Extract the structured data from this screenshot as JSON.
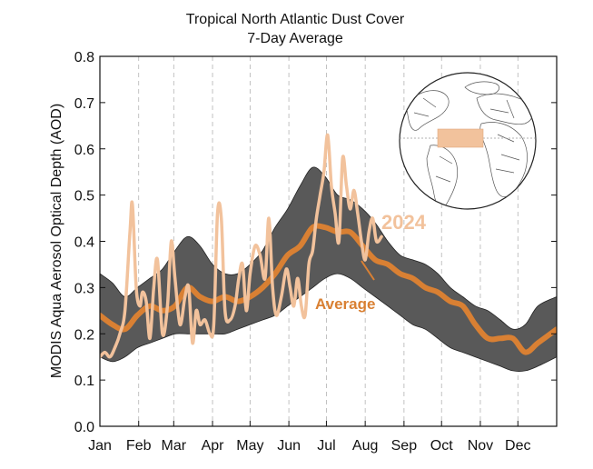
{
  "chart_data": {
    "type": "line",
    "title": "Tropical North Atlantic Dust Cover",
    "subtitle": "7-Day Average",
    "xlabel": "",
    "ylabel": "MODIS Aqua Aerosol Optical Depth (AOD)",
    "ylim": [
      0,
      0.8
    ],
    "yticks": [
      "0.0",
      "0.1",
      "0.2",
      "0.3",
      "0.4",
      "0.5",
      "0.6",
      "0.7",
      "0.8"
    ],
    "xlim": [
      0,
      365
    ],
    "months": [
      "Jan",
      "Feb",
      "Mar",
      "Apr",
      "May",
      "Jun",
      "Jul",
      "Aug",
      "Sep",
      "Oct",
      "Nov",
      "Dec"
    ],
    "month_start_days": [
      0,
      31,
      59,
      90,
      120,
      151,
      181,
      212,
      243,
      273,
      304,
      334
    ],
    "grid": "vertical dashed at month starts",
    "legend": "inline labels",
    "colors": {
      "band": "#595959",
      "average": "#d98033",
      "year": "#f2c29c",
      "grid": "#b3b3b3",
      "region": "#f2c29c"
    },
    "band": {
      "x": [
        0,
        10,
        20,
        30,
        40,
        50,
        60,
        70,
        80,
        90,
        100,
        110,
        120,
        130,
        140,
        150,
        160,
        170,
        180,
        190,
        200,
        210,
        220,
        230,
        240,
        250,
        260,
        270,
        280,
        290,
        300,
        310,
        320,
        330,
        340,
        350,
        365
      ],
      "upper": [
        0.33,
        0.31,
        0.28,
        0.3,
        0.32,
        0.34,
        0.38,
        0.41,
        0.39,
        0.35,
        0.33,
        0.33,
        0.35,
        0.38,
        0.43,
        0.47,
        0.52,
        0.56,
        0.54,
        0.5,
        0.49,
        0.47,
        0.44,
        0.4,
        0.37,
        0.36,
        0.35,
        0.33,
        0.3,
        0.28,
        0.26,
        0.25,
        0.23,
        0.21,
        0.22,
        0.26,
        0.28
      ],
      "lower": [
        0.15,
        0.14,
        0.15,
        0.17,
        0.18,
        0.19,
        0.2,
        0.2,
        0.2,
        0.2,
        0.2,
        0.21,
        0.22,
        0.23,
        0.24,
        0.26,
        0.28,
        0.3,
        0.32,
        0.33,
        0.32,
        0.3,
        0.28,
        0.26,
        0.24,
        0.22,
        0.21,
        0.19,
        0.17,
        0.16,
        0.15,
        0.14,
        0.13,
        0.12,
        0.12,
        0.13,
        0.15
      ]
    },
    "series": [
      {
        "name": "Average",
        "x": [
          0,
          10,
          20,
          30,
          40,
          50,
          60,
          70,
          80,
          90,
          100,
          110,
          120,
          130,
          140,
          150,
          160,
          170,
          180,
          190,
          200,
          210,
          220,
          230,
          240,
          250,
          260,
          270,
          280,
          290,
          300,
          310,
          320,
          330,
          340,
          350,
          365
        ],
        "values": [
          0.24,
          0.22,
          0.21,
          0.24,
          0.26,
          0.25,
          0.26,
          0.3,
          0.28,
          0.27,
          0.28,
          0.27,
          0.28,
          0.3,
          0.33,
          0.37,
          0.39,
          0.43,
          0.43,
          0.42,
          0.42,
          0.39,
          0.36,
          0.35,
          0.33,
          0.32,
          0.3,
          0.29,
          0.27,
          0.26,
          0.22,
          0.19,
          0.19,
          0.19,
          0.16,
          0.18,
          0.21
        ]
      },
      {
        "name": "2024",
        "x": [
          0,
          4,
          8,
          12,
          16,
          20,
          24,
          26,
          29,
          32,
          34,
          37,
          40,
          43,
          46,
          50,
          54,
          57,
          60,
          64,
          68,
          71,
          74,
          77,
          80,
          84,
          88,
          91,
          94,
          97,
          100,
          104,
          108,
          111,
          114,
          117,
          120,
          124,
          128,
          132,
          135,
          138,
          141,
          145,
          149,
          152,
          155,
          158,
          161,
          164,
          167,
          170,
          173,
          176,
          179,
          182,
          185,
          188,
          191,
          194,
          197,
          200,
          203,
          206,
          209,
          212,
          215,
          218,
          221,
          225
        ],
        "values": [
          0.15,
          0.16,
          0.15,
          0.17,
          0.2,
          0.25,
          0.42,
          0.48,
          0.3,
          0.26,
          0.29,
          0.27,
          0.19,
          0.3,
          0.36,
          0.2,
          0.26,
          0.4,
          0.32,
          0.22,
          0.28,
          0.3,
          0.18,
          0.25,
          0.22,
          0.23,
          0.2,
          0.22,
          0.46,
          0.45,
          0.25,
          0.23,
          0.26,
          0.32,
          0.35,
          0.25,
          0.33,
          0.39,
          0.37,
          0.32,
          0.45,
          0.3,
          0.24,
          0.28,
          0.34,
          0.3,
          0.26,
          0.32,
          0.26,
          0.24,
          0.35,
          0.38,
          0.45,
          0.5,
          0.55,
          0.63,
          0.52,
          0.46,
          0.4,
          0.58,
          0.52,
          0.47,
          0.51,
          0.46,
          0.4,
          0.36,
          0.42,
          0.45,
          0.4,
          0.41
        ]
      }
    ],
    "labels": {
      "year": "2024",
      "average": "Average"
    },
    "inset": {
      "type": "globe",
      "highlight": "tropical-north-atlantic-box"
    }
  }
}
